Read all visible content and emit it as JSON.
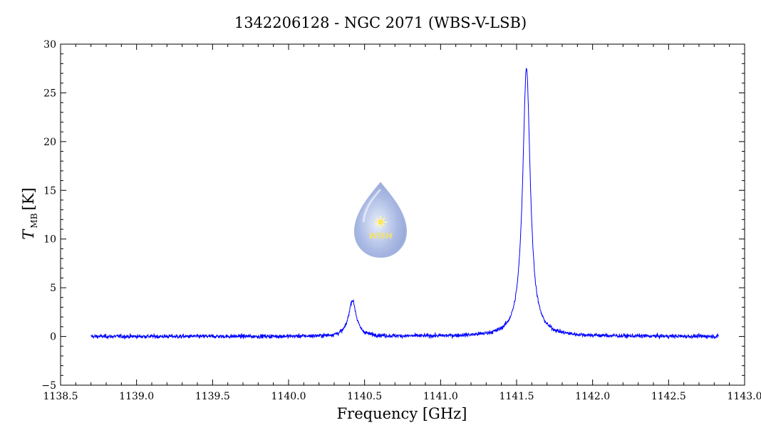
{
  "chart_data": {
    "type": "line",
    "title": "1342206128 - NGC 2071 (WBS-V-LSB)",
    "xlabel": "Frequency [GHz]",
    "ylabel": "T",
    "ylabel_sub": "MB",
    "ylabel_unit": "[K]",
    "xlim": [
      1138.5,
      1143.0
    ],
    "ylim": [
      -5,
      30
    ],
    "xticks": [
      "1138.5",
      "1139.0",
      "1139.5",
      "1140.0",
      "1140.5",
      "1141.0",
      "1141.5",
      "1142.0",
      "1142.5",
      "1143.0"
    ],
    "yticks": [
      "−5",
      "0",
      "5",
      "10",
      "15",
      "20",
      "25",
      "30"
    ],
    "grid": false,
    "series": [
      {
        "color": "#0000ff",
        "x_range": [
          1138.7,
          1142.83
        ],
        "baseline": 0.0,
        "noise_rms": 0.25,
        "peaks": [
          {
            "x": 1140.42,
            "y": 3.7,
            "width": 0.03
          },
          {
            "x": 1141.565,
            "y": 27.6,
            "width": 0.03
          }
        ]
      }
    ],
    "logo": {
      "text": "WISH"
    }
  }
}
